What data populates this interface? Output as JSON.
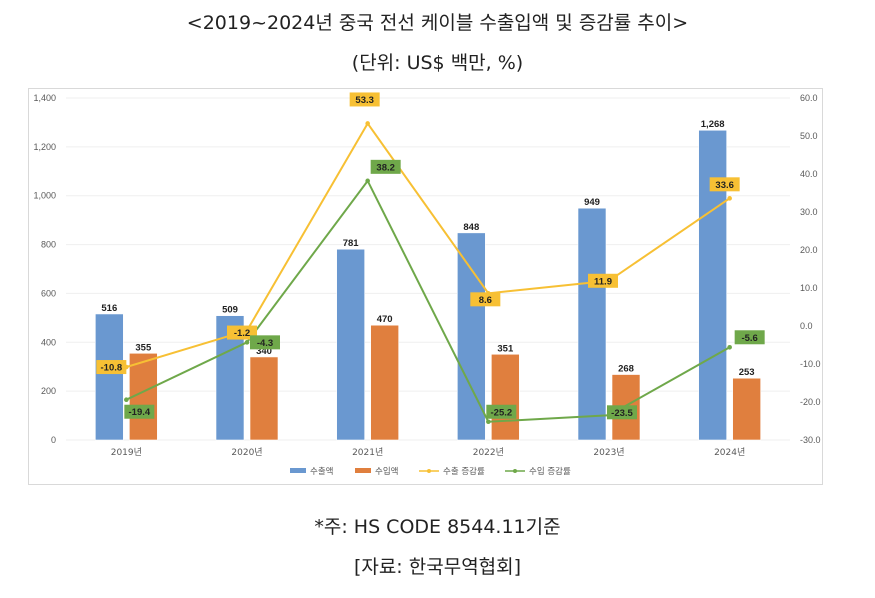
{
  "header": {
    "title": "<2019~2024년 중국 전선 케이블 수출입액 및 증감률 추이>",
    "unit": "(단위: US$ 백만, %)"
  },
  "footer": {
    "note": "*주: HS CODE 8544.11기준",
    "source": "[자료: 한국무역협회]"
  },
  "colors": {
    "export_bar": "#6a98d0",
    "import_bar": "#e07f3e",
    "export_rate": "#f7c034",
    "import_rate": "#6fa84a",
    "grid": "#efefef",
    "frame": "#d9d9d9"
  },
  "chart_data": {
    "type": "bar+line",
    "title": "<2019~2024년 중국 전선 케이블 수출입액 및 증감률 추이>",
    "categories": [
      "2019년",
      "2020년",
      "2021년",
      "2022년",
      "2023년",
      "2024년"
    ],
    "series": [
      {
        "name": "수출액",
        "type": "bar",
        "axis": "left",
        "values": [
          516,
          509,
          781,
          848,
          949,
          1268
        ],
        "labels": [
          "516",
          "509",
          "781",
          "848",
          "949",
          "1,268"
        ]
      },
      {
        "name": "수입액",
        "type": "bar",
        "axis": "left",
        "values": [
          355,
          340,
          470,
          351,
          268,
          253
        ],
        "labels": [
          "355",
          "340",
          "470",
          "351",
          "268",
          "253"
        ]
      },
      {
        "name": "수출 증감률",
        "type": "line",
        "axis": "right",
        "values": [
          -10.8,
          -1.2,
          53.3,
          8.6,
          11.9,
          33.6
        ],
        "labels": [
          "-10.8",
          "-1.2",
          "53.3",
          "8.6",
          "11.9",
          "33.6"
        ]
      },
      {
        "name": "수입 증감률",
        "type": "line",
        "axis": "right",
        "values": [
          -19.4,
          -4.3,
          38.2,
          -25.2,
          -23.5,
          -5.6
        ],
        "labels": [
          "-19.4",
          "-4.3",
          "38.2",
          "-25.2",
          "-23.5",
          "-5.6"
        ]
      }
    ],
    "left_axis": {
      "range": [
        0,
        1400
      ],
      "ticks": [
        "0",
        "200",
        "400",
        "600",
        "800",
        "1,000",
        "1,200",
        "1,400"
      ],
      "tick_values": [
        0,
        200,
        400,
        600,
        800,
        1000,
        1200,
        1400
      ]
    },
    "right_axis": {
      "range": [
        -30,
        60
      ],
      "ticks": [
        "-30.0",
        "-20.0",
        "-10.0",
        "0.0",
        "10.0",
        "20.0",
        "30.0",
        "40.0",
        "50.0",
        "60.0"
      ],
      "tick_values": [
        -30,
        -20,
        -10,
        0,
        10,
        20,
        30,
        40,
        50,
        60
      ]
    },
    "grid": true,
    "legend": "bottom"
  }
}
